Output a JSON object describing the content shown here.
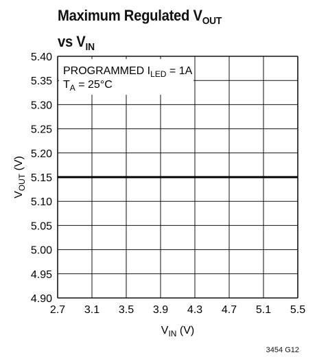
{
  "chart_data": {
    "type": "line",
    "title_main": "Maximum Regulated V",
    "title_main_sub": "OUT",
    "title_vs": "vs V",
    "title_vs_sub": "IN",
    "xlabel_main": "V",
    "xlabel_sub": "IN",
    "xlabel_unit": " (V)",
    "ylabel_main": "V",
    "ylabel_sub": "OUT",
    "ylabel_unit": " (V)",
    "xlim": [
      2.7,
      5.5
    ],
    "ylim": [
      4.9,
      5.4
    ],
    "x_ticks": [
      "2.7",
      "3.1",
      "3.5",
      "3.9",
      "4.3",
      "4.7",
      "5.1",
      "5.5"
    ],
    "y_ticks": [
      "4.90",
      "4.95",
      "5.00",
      "5.05",
      "5.10",
      "5.15",
      "5.20",
      "5.25",
      "5.30",
      "5.35",
      "5.40"
    ],
    "grid": true,
    "annotation": {
      "line1_main": "PROGRAMMED I",
      "line1_sub": "LED",
      "line1_rest": " = 1A",
      "line2_main": "T",
      "line2_sub": "A",
      "line2_rest": " = 25°C"
    },
    "series": [
      {
        "x": [
          2.7,
          5.5
        ],
        "y": [
          5.15,
          5.15
        ]
      }
    ],
    "footnote": "3454 G12"
  }
}
